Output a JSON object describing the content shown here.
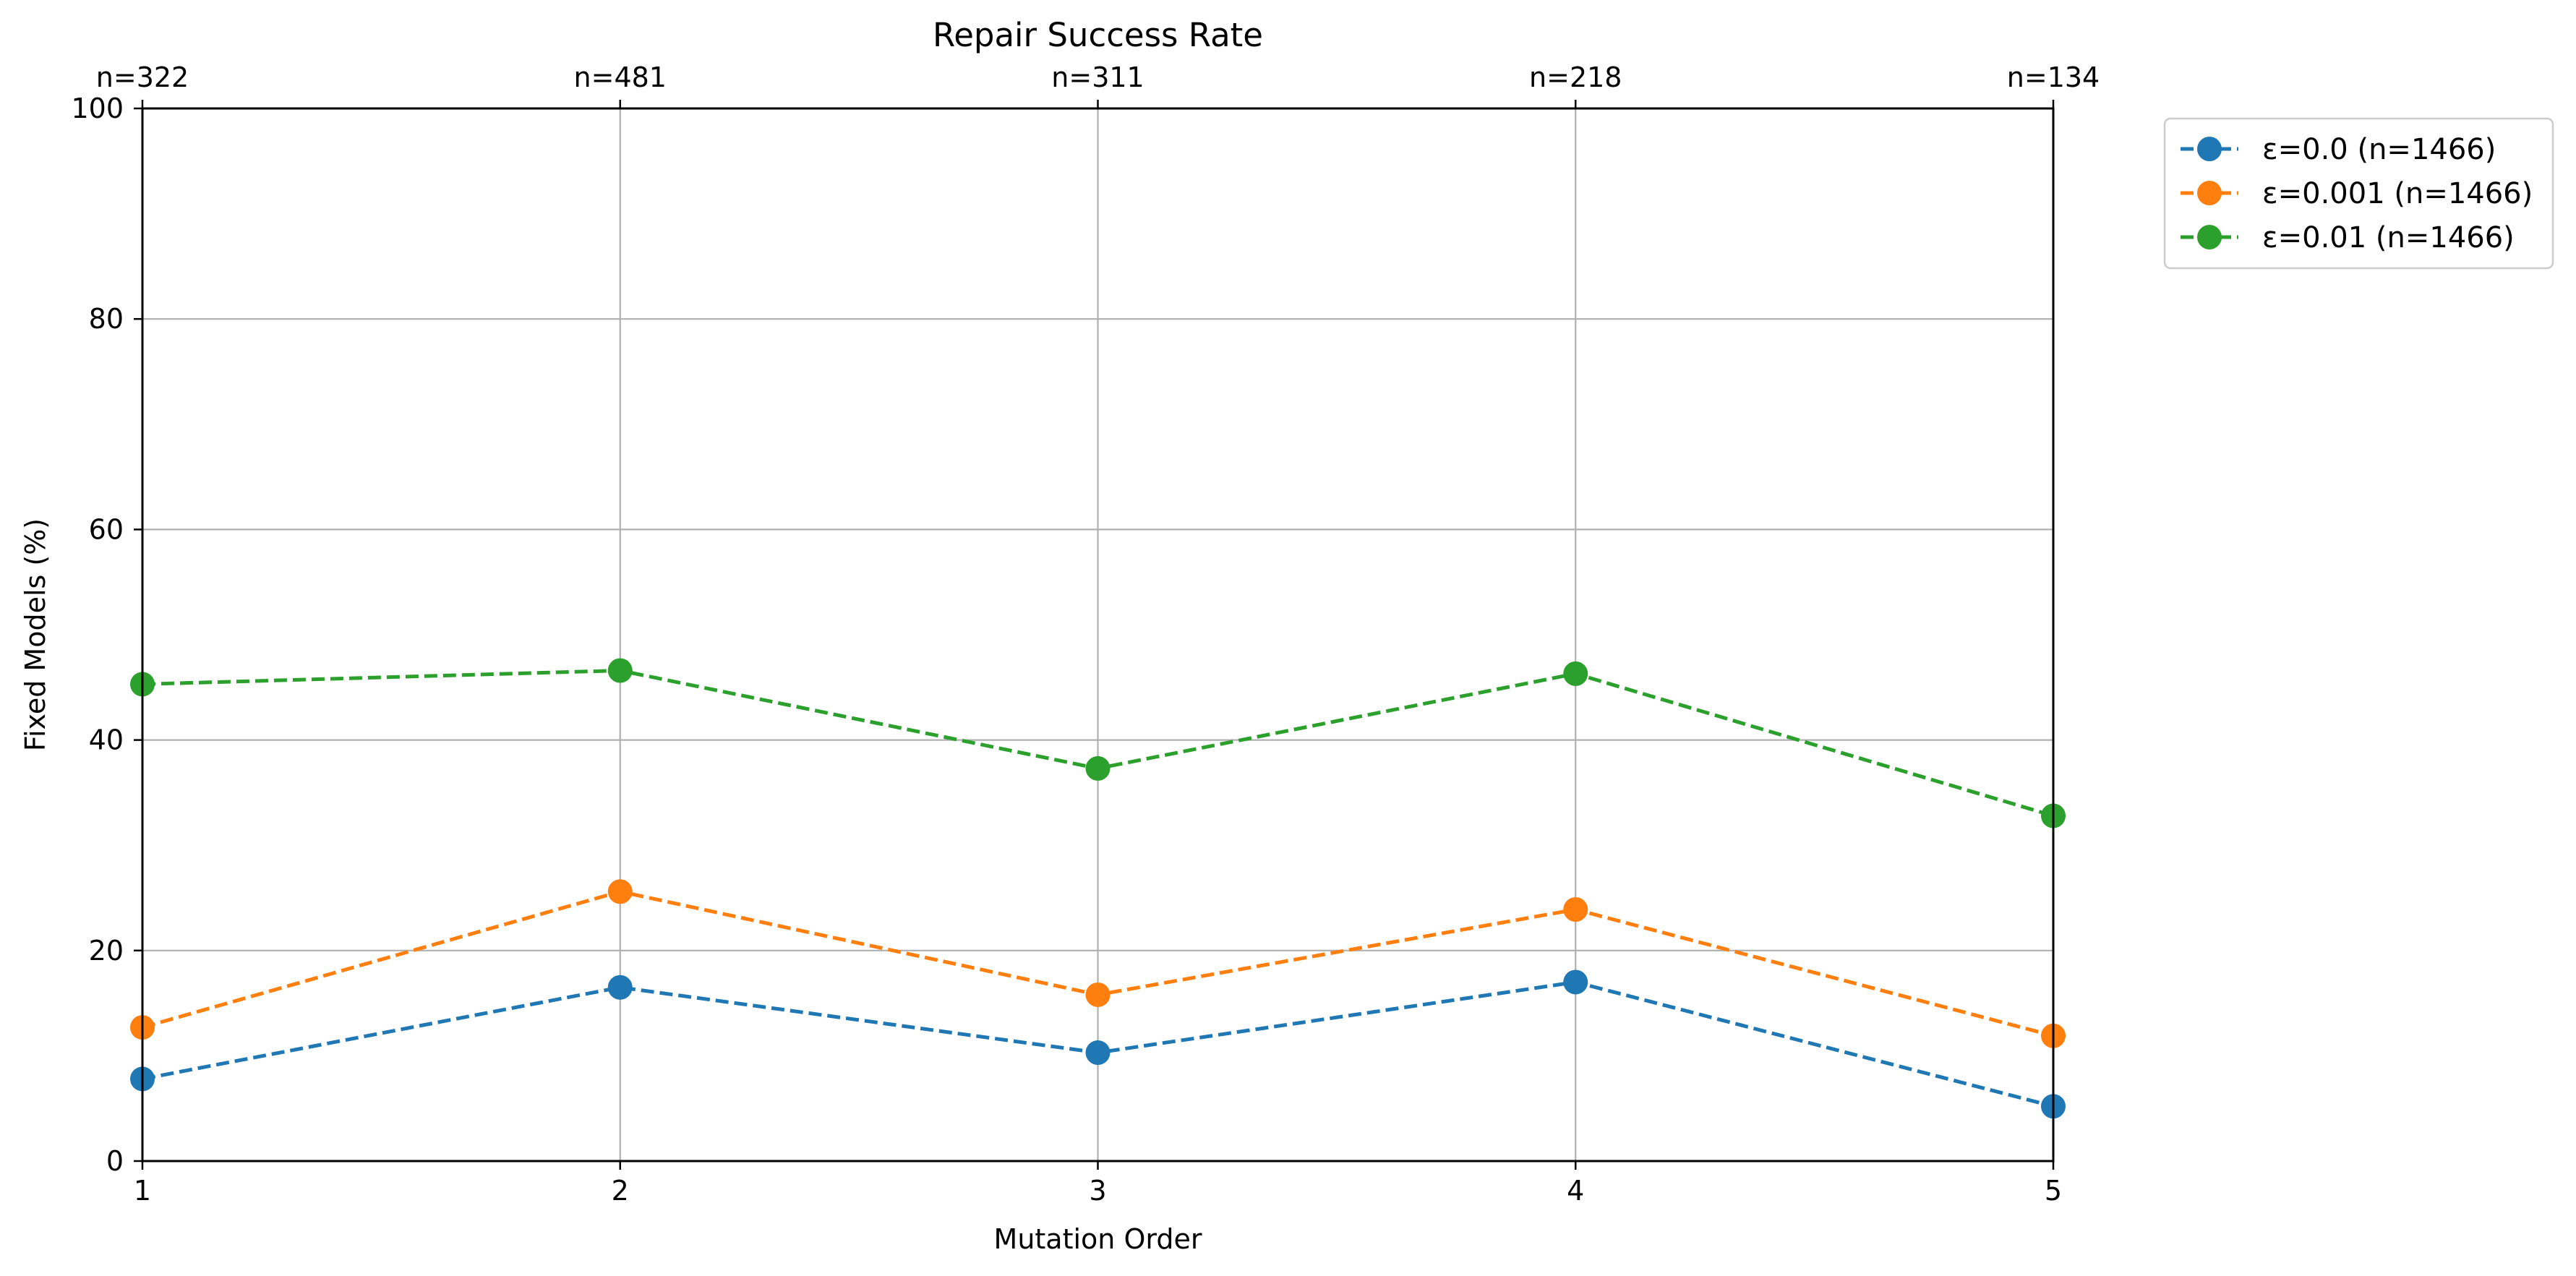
{
  "chart_data": {
    "type": "line",
    "title": "Repair Success Rate",
    "xlabel": "Mutation Order",
    "ylabel": "Fixed Models (%)",
    "x": [
      1,
      2,
      3,
      4,
      5
    ],
    "x_ticks": [
      "1",
      "2",
      "3",
      "4",
      "5"
    ],
    "top_labels": [
      "n=322",
      "n=481",
      "n=311",
      "n=218",
      "n=134"
    ],
    "xlim": [
      1,
      5
    ],
    "ylim": [
      0,
      100
    ],
    "y_ticks": [
      0,
      20,
      40,
      60,
      80,
      100
    ],
    "grid": true,
    "legend_placement": "outside top-right",
    "series": [
      {
        "name": "ε=0.0 (n=1466)",
        "color": "#1f77b4",
        "values": [
          7.8,
          16.5,
          10.3,
          17.0,
          5.2
        ]
      },
      {
        "name": "ε=0.001 (n=1466)",
        "color": "#ff7f0e",
        "values": [
          12.7,
          25.6,
          15.8,
          23.9,
          11.9
        ]
      },
      {
        "name": "ε=0.01 (n=1466)",
        "color": "#2ca02c",
        "values": [
          45.3,
          46.6,
          37.3,
          46.3,
          32.8
        ]
      }
    ]
  }
}
